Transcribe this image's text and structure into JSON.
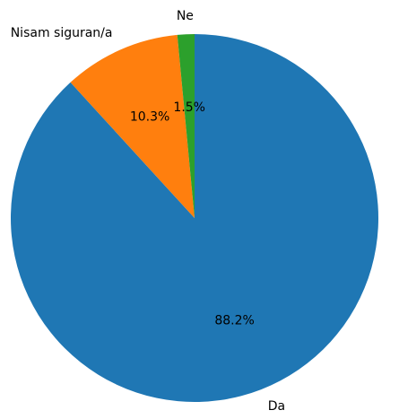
{
  "chart_data": {
    "type": "pie",
    "slices": [
      {
        "label": "Da",
        "value": 88.2,
        "pct_label": "88.2%",
        "color": "#1f77b4"
      },
      {
        "label": "Nisam siguran/a",
        "value": 10.3,
        "pct_label": "10.3%",
        "color": "#ff7f0e"
      },
      {
        "label": "Ne",
        "value": 1.5,
        "pct_label": "1.5%",
        "color": "#2ca02c"
      }
    ],
    "start_angle_deg": 90,
    "direction": "clockwise",
    "legend": "none"
  }
}
